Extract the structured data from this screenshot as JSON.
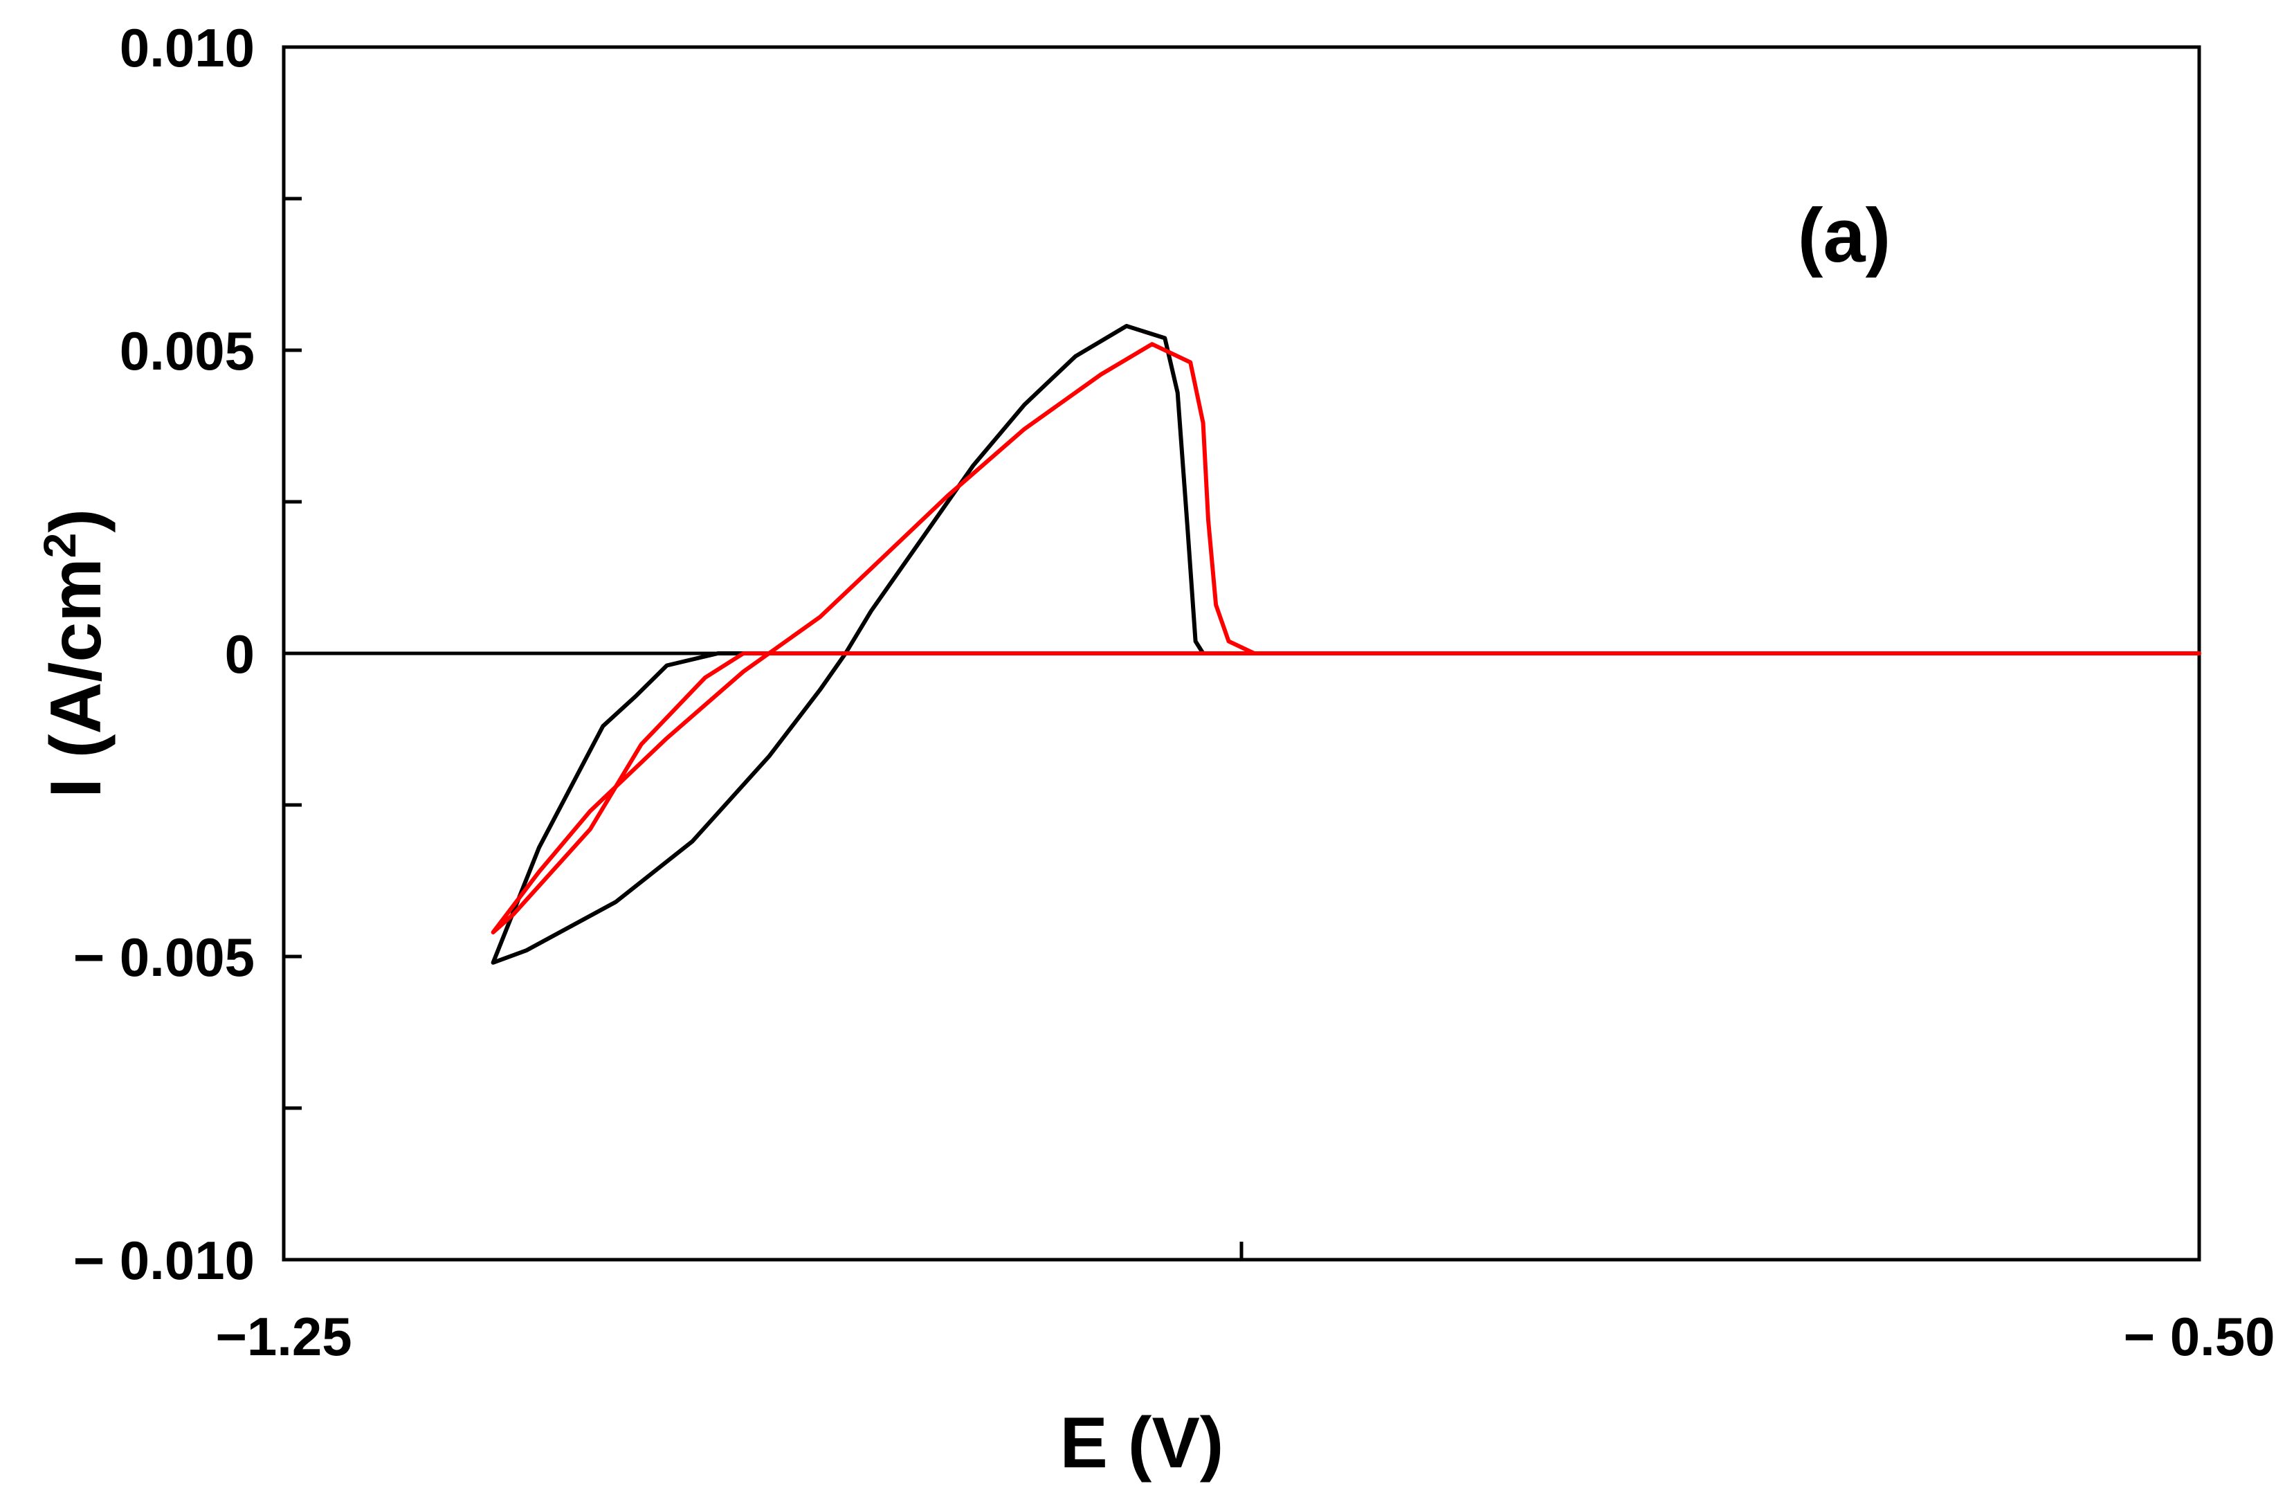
{
  "chart_data": {
    "type": "line",
    "title": "",
    "annotation": "(a)",
    "xlabel": "E (V)",
    "ylabel": "I (A/cm²)",
    "ylabel_main": "I (A/cm",
    "ylabel_sup": "2",
    "ylabel_end": ")",
    "xlim": [
      -1.25,
      -0.5
    ],
    "ylim": [
      -0.01,
      0.01
    ],
    "x_ticks": [
      {
        "value": -1.25,
        "label": "−1.25"
      },
      {
        "value": -0.875,
        "label": ""
      },
      {
        "value": -0.5,
        "label": "− 0.50"
      }
    ],
    "y_ticks": [
      {
        "value": 0.01,
        "label": "0.010"
      },
      {
        "value": 0.0075,
        "label": ""
      },
      {
        "value": 0.005,
        "label": "0.005"
      },
      {
        "value": 0.0025,
        "label": ""
      },
      {
        "value": 0.0,
        "label": "0"
      },
      {
        "value": -0.0025,
        "label": ""
      },
      {
        "value": -0.005,
        "label": "− 0.005"
      },
      {
        "value": -0.0075,
        "label": ""
      },
      {
        "value": -0.01,
        "label": "− 0.010"
      }
    ],
    "grid": false,
    "zero_line": true,
    "series": [
      {
        "color": "#000000",
        "x": [
          -0.5,
          -1.0,
          -1.08,
          -1.1,
          -1.112,
          -1.125,
          -1.15,
          -1.168,
          -1.155,
          -1.12,
          -1.09,
          -1.06,
          -1.04,
          -1.03,
          -1.02,
          -1.0,
          -0.98,
          -0.96,
          -0.94,
          -0.92,
          -0.905,
          -0.9,
          -0.896,
          -0.893,
          -0.89
        ],
        "y": [
          0.0,
          0.0,
          0.0,
          -0.0002,
          -0.0007,
          -0.0012,
          -0.0032,
          -0.0051,
          -0.0049,
          -0.0041,
          -0.0031,
          -0.0017,
          -0.0006,
          0.0,
          0.0007,
          0.0019,
          0.0031,
          0.0041,
          0.0049,
          0.0054,
          0.0052,
          0.0043,
          0.002,
          0.0002,
          0.0
        ]
      },
      {
        "color": "#ff0000",
        "x": [
          -0.5,
          -0.85,
          -0.87,
          -0.88,
          -0.885,
          -0.888,
          -0.89,
          -0.895,
          -0.91,
          -0.93,
          -0.96,
          -0.99,
          -1.02,
          -1.04,
          -1.07,
          -1.1,
          -1.13,
          -1.15,
          -1.168,
          -1.16,
          -1.13,
          -1.11,
          -1.085,
          -1.07,
          -0.5
        ],
        "y": [
          0.0,
          0.0,
          0.0,
          0.0002,
          0.0008,
          0.0022,
          0.0038,
          0.0048,
          0.0051,
          0.0046,
          0.0037,
          0.0026,
          0.0014,
          0.0006,
          -0.0003,
          -0.0014,
          -0.0026,
          -0.0036,
          -0.0046,
          -0.0043,
          -0.0029,
          -0.0015,
          -0.0004,
          0.0,
          0.0
        ]
      }
    ]
  }
}
